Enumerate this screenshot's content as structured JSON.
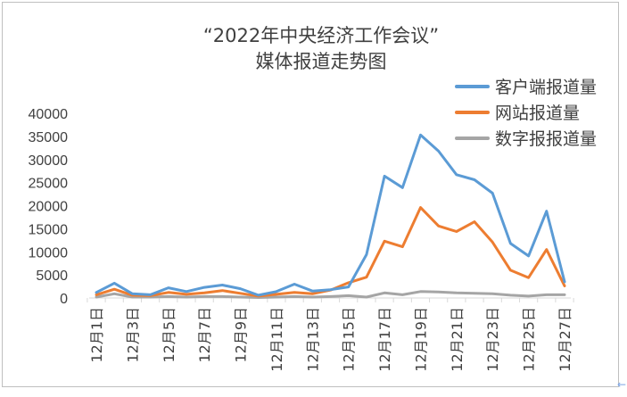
{
  "chart_data": {
    "type": "line",
    "title": "“2022年中央经济工作会议”",
    "subtitle": "媒体报道走势图",
    "x": [
      "12月1日",
      "12月2日",
      "12月3日",
      "12月4日",
      "12月5日",
      "12月6日",
      "12月7日",
      "12月8日",
      "12月9日",
      "12月10日",
      "12月11日",
      "12月12日",
      "12月13日",
      "12月14日",
      "12月15日",
      "12月16日",
      "12月17日",
      "12月18日",
      "12月19日",
      "12月20日",
      "12月21日",
      "12月22日",
      "12月23日",
      "12月24日",
      "12月25日",
      "12月26日",
      "12月27日"
    ],
    "x_tick_labels": [
      "12月1日",
      "12月3日",
      "12月5日",
      "12月7日",
      "12月9日",
      "12月11日",
      "12月13日",
      "12月15日",
      "12月17日",
      "12月19日",
      "12月21日",
      "12月23日",
      "12月25日",
      "12月27日"
    ],
    "y_ticks": [
      "0",
      "5000",
      "10000",
      "15000",
      "20000",
      "25000",
      "30000",
      "35000",
      "40000"
    ],
    "ylim": [
      0,
      40000
    ],
    "grid": false,
    "legend_position": "top-right",
    "series": [
      {
        "name": "客户端报道量",
        "color": "#5b9bd5",
        "values": [
          1200,
          3200,
          900,
          700,
          2200,
          1400,
          2300,
          2800,
          2000,
          600,
          1400,
          3000,
          1500,
          1800,
          2400,
          9400,
          26400,
          23900,
          35300,
          31800,
          26700,
          25600,
          22700,
          11800,
          9100,
          18800,
          3500
        ]
      },
      {
        "name": "网站报道量",
        "color": "#ed7d31",
        "values": [
          700,
          1900,
          600,
          500,
          1200,
          800,
          1100,
          1600,
          1000,
          400,
          800,
          1200,
          900,
          1700,
          3300,
          4500,
          12300,
          11100,
          19600,
          15600,
          14400,
          16500,
          12100,
          6000,
          4400,
          10500,
          2600
        ]
      },
      {
        "name": "数字报报道量",
        "color": "#a5a5a5",
        "values": [
          200,
          900,
          200,
          200,
          300,
          200,
          300,
          300,
          200,
          100,
          200,
          300,
          200,
          300,
          500,
          200,
          1100,
          700,
          1400,
          1300,
          1100,
          1000,
          900,
          600,
          400,
          700,
          700
        ]
      }
    ]
  }
}
